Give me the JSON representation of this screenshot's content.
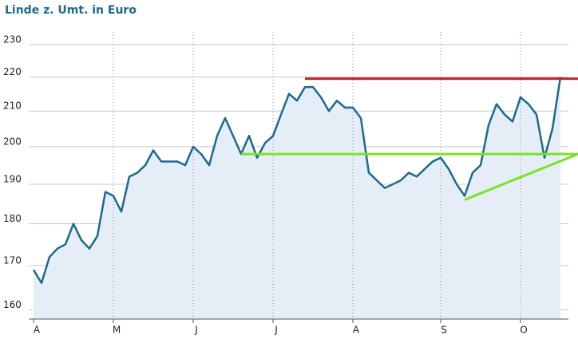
{
  "chart_data": {
    "type": "line",
    "title": "Linde z. Umt. in Euro",
    "categories": [
      "A",
      null,
      null,
      null,
      null,
      null,
      null,
      null,
      null,
      null,
      "M",
      null,
      null,
      null,
      null,
      null,
      null,
      null,
      null,
      null,
      "J",
      null,
      null,
      null,
      null,
      null,
      null,
      null,
      null,
      null,
      "J",
      null,
      null,
      null,
      null,
      null,
      null,
      null,
      null,
      null,
      "A",
      null,
      null,
      null,
      null,
      null,
      null,
      null,
      null,
      null,
      null,
      "S",
      null,
      null,
      null,
      null,
      null,
      null,
      null,
      null,
      null,
      "O",
      null,
      null,
      null,
      null,
      null
    ],
    "series": [
      {
        "color": "#1b6b8c",
        "values": [
          169,
          166,
          172,
          174,
          175,
          180,
          176,
          174,
          177,
          188,
          187,
          183,
          192,
          193,
          195,
          199,
          196,
          196,
          196,
          195,
          200,
          198,
          195,
          203,
          208,
          203,
          198,
          203,
          197,
          201,
          203,
          209,
          215,
          213,
          217,
          217,
          214,
          210,
          213,
          211,
          211,
          208,
          193,
          191,
          189,
          190,
          191,
          193,
          192,
          194,
          196,
          197,
          194,
          190,
          187,
          193,
          195,
          206,
          212,
          209,
          207,
          214,
          212,
          209,
          197,
          205,
          220
        ]
      }
    ],
    "trend_lines": [
      {
        "color": "#cc1f2e",
        "start": 34,
        "values": [
          219.5,
          219.5
        ]
      },
      {
        "color": "#7ee02a",
        "start": 26,
        "values": [
          198,
          198
        ]
      },
      {
        "color": "#7ee02a",
        "start": 54,
        "values": [
          186,
          198
        ]
      }
    ],
    "ylim": [
      158,
      234
    ],
    "yticks": [
      160,
      170,
      180,
      190,
      200,
      210,
      220,
      230
    ],
    "log_scale": true,
    "grid": true
  }
}
